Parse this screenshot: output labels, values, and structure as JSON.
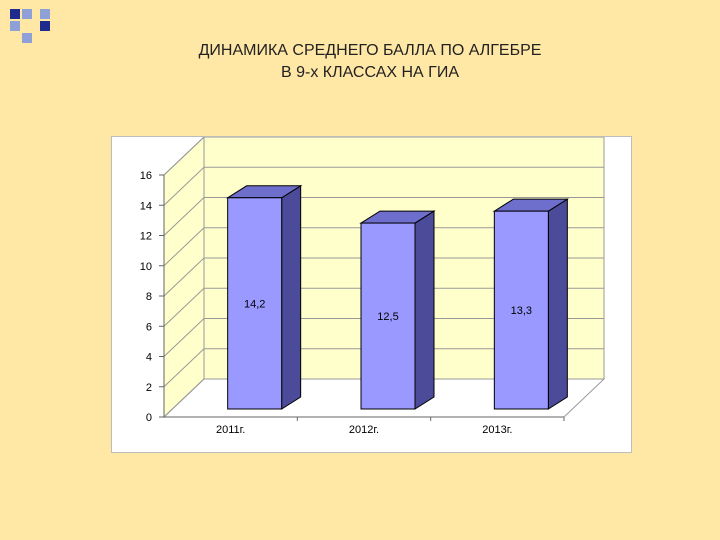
{
  "slide": {
    "title_line1": "ДИНАМИКА СРЕДНЕГО БАЛЛА   ПО АЛГЕБРЕ",
    "title_line2": "В 9-х КЛАССАХ НА ГИА"
  },
  "colors": {
    "background": "#FFE7A6",
    "decoration_dark": "#1F2A8F",
    "decoration_light": "#8FA0D6",
    "plot_wall": "#FFFFCC",
    "bar_front": "#9999FF",
    "bar_side": "#4B4B99",
    "bar_top": "#6E6ECC"
  },
  "chart_data": {
    "type": "bar",
    "title": "",
    "xlabel": "",
    "ylabel": "",
    "categories": [
      "2011г.",
      "2012г.",
      "2013г."
    ],
    "values": [
      14.2,
      12.5,
      13.3
    ],
    "data_labels": [
      "14,2",
      "12,5",
      "13,3"
    ],
    "ylim": [
      0,
      16
    ],
    "yticks": [
      "0",
      "2",
      "4",
      "6",
      "8",
      "10",
      "12",
      "14",
      "16"
    ],
    "grid": true,
    "style": "3d-bar",
    "legend": "none"
  }
}
